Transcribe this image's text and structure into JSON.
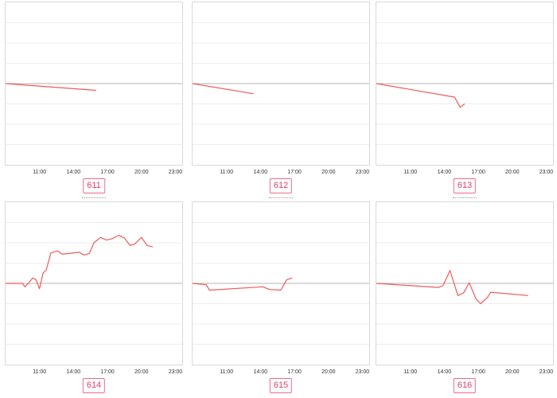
{
  "colors": {
    "line": "#f05a5a",
    "baseline": "#b5b5b5",
    "grid": "#eeeeee",
    "badge": "#e0416b"
  },
  "x_ticks": [
    "11:00",
    "14:00",
    "17:00",
    "20:00",
    "23:00"
  ],
  "chart_data": [
    {
      "type": "line",
      "label": "611",
      "series": [
        {
          "values": [
            [
              8,
              0
            ],
            [
              16,
              -1
            ]
          ]
        }
      ],
      "ylim": [
        -12,
        12
      ]
    },
    {
      "type": "line",
      "label": "612",
      "series": [
        {
          "values": [
            [
              8,
              0
            ],
            [
              13.4,
              -1.5
            ]
          ]
        }
      ],
      "ylim": [
        -12,
        12
      ]
    },
    {
      "type": "line",
      "label": "613",
      "series": [
        {
          "values": [
            [
              8,
              0
            ],
            [
              14.9,
              -2
            ],
            [
              15.4,
              -3.5
            ],
            [
              15.8,
              -3
            ]
          ]
        }
      ],
      "ylim": [
        -12,
        12
      ]
    },
    {
      "type": "line",
      "label": "614",
      "series": [
        {
          "values": [
            [
              8,
              0
            ],
            [
              9.5,
              0
            ],
            [
              9.7,
              -0.5
            ],
            [
              10,
              0
            ],
            [
              10.4,
              0.8
            ],
            [
              10.7,
              0.5
            ],
            [
              11,
              -0.8
            ],
            [
              11.3,
              1.5
            ],
            [
              11.6,
              2
            ],
            [
              12,
              4.5
            ],
            [
              12.6,
              4.8
            ],
            [
              13,
              4.3
            ],
            [
              14.5,
              4.6
            ],
            [
              14.9,
              4.2
            ],
            [
              15.4,
              4.4
            ],
            [
              15.8,
              6
            ],
            [
              16.4,
              6.8
            ],
            [
              16.9,
              6.4
            ],
            [
              17.4,
              6.6
            ],
            [
              18,
              7.1
            ],
            [
              18.5,
              6.7
            ],
            [
              19,
              5.6
            ],
            [
              19.4,
              5.8
            ],
            [
              20,
              6.8
            ],
            [
              20.5,
              5.6
            ],
            [
              21,
              5.4
            ]
          ]
        }
      ],
      "ylim": [
        -12,
        12
      ]
    },
    {
      "type": "line",
      "label": "615",
      "series": [
        {
          "values": [
            [
              8,
              0
            ],
            [
              9.2,
              -0.2
            ],
            [
              9.5,
              -1
            ],
            [
              14.2,
              -0.5
            ],
            [
              14.8,
              -0.9
            ],
            [
              15.8,
              -1
            ],
            [
              16.3,
              0.5
            ],
            [
              16.8,
              0.8
            ]
          ]
        }
      ],
      "ylim": [
        -12,
        12
      ]
    },
    {
      "type": "line",
      "label": "616",
      "series": [
        {
          "values": [
            [
              8,
              0
            ],
            [
              13.5,
              -0.6
            ],
            [
              13.9,
              -0.3
            ],
            [
              14.5,
              1.9
            ],
            [
              15.2,
              -1.8
            ],
            [
              15.7,
              -1.4
            ],
            [
              16.2,
              0.1
            ],
            [
              16.8,
              -2.3
            ],
            [
              17.2,
              -3
            ],
            [
              17.8,
              -2.1
            ],
            [
              18.1,
              -1.3
            ],
            [
              21.4,
              -1.8
            ]
          ]
        }
      ],
      "ylim": [
        -12,
        12
      ]
    }
  ]
}
